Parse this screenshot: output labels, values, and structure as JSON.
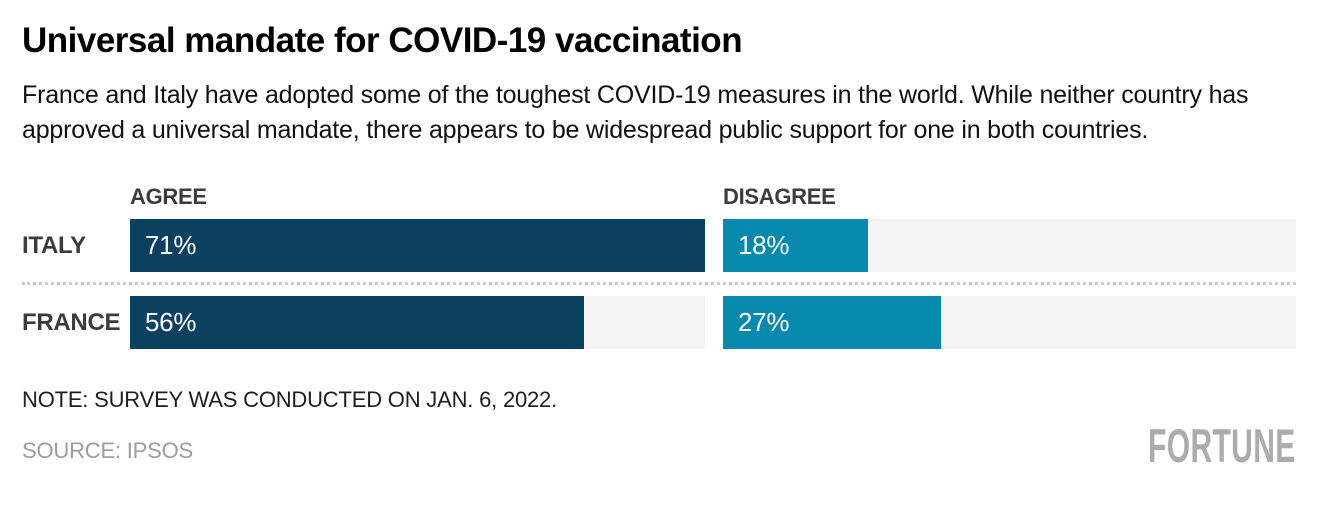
{
  "header": {
    "title": "Universal mandate for COVID-19 vaccination",
    "subtitle": "France and Italy have adopted some of the toughest COVID-19 measures in the world. While neither country has approved a universal mandate, there appears to be widespread public support for one in both countries."
  },
  "chart_data": {
    "type": "bar",
    "orientation": "horizontal",
    "title": "Universal mandate for COVID-19 vaccination",
    "categories": [
      "ITALY",
      "FRANCE"
    ],
    "series": [
      {
        "name": "AGREE",
        "values": [
          71,
          56
        ],
        "color": "#0a4060"
      },
      {
        "name": "DISAGREE",
        "values": [
          18,
          27
        ],
        "color": "#0589ac"
      }
    ],
    "value_suffix": "%",
    "axis_max": 71,
    "xlim": [
      0,
      71
    ],
    "grid": false,
    "legend_position": "column-headers-above-bars",
    "track_color": "#f3f3f3",
    "data_labels": [
      "71%",
      "56%",
      "18%",
      "27%"
    ]
  },
  "footer": {
    "note": "NOTE: SURVEY WAS CONDUCTED ON JAN. 6, 2022.",
    "source": "SOURCE: IPSOS",
    "brand": "FORTUNE"
  },
  "colors": {
    "agree_bar": "#0a4060",
    "disagree_bar": "#0589ac",
    "bar_track": "#f3f3f3",
    "divider_dotted": "#cbcbcb",
    "label_text": "#3c3c3c",
    "bar_value_text": "#ffffff",
    "source_text": "#9d9d9d",
    "brand_text": "#acacac",
    "background": "#ffffff"
  }
}
